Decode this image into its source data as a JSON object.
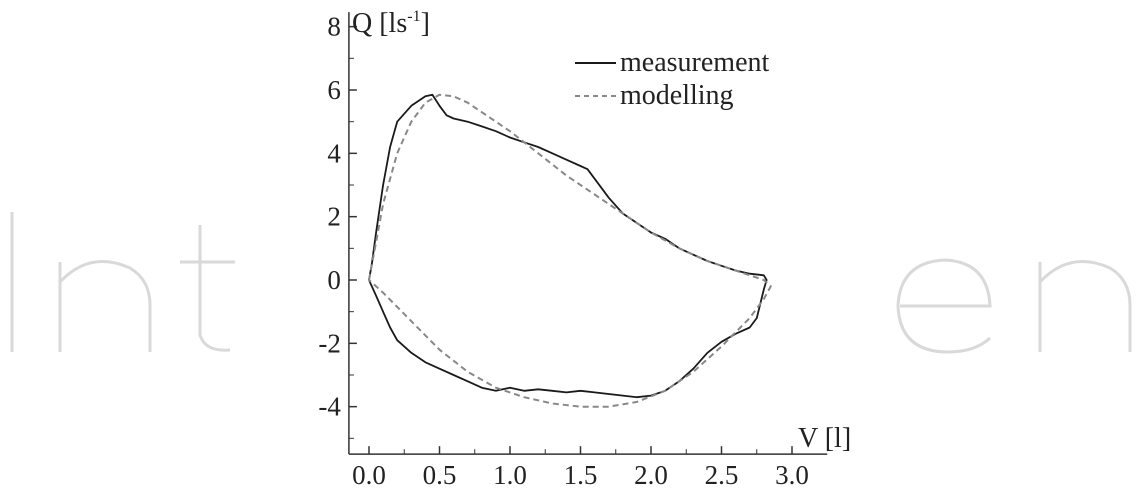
{
  "chart_data": {
    "type": "line",
    "title": "",
    "xlabel": "V [l]",
    "ylabel_main": "Q [ls",
    "ylabel_sup": "-1",
    "ylabel_close": "]",
    "xlim": [
      -0.1,
      3.25
    ],
    "ylim": [
      -5.5,
      8.3
    ],
    "x_ticks": [
      "0.0",
      "0.5",
      "1.0",
      "1.5",
      "2.0",
      "2.5",
      "3.0"
    ],
    "y_ticks": [
      "8",
      "6",
      "4",
      "2",
      "0",
      "-2",
      "-4"
    ],
    "legend_position": "top-right",
    "series": [
      {
        "name": "measurement",
        "style": "solid",
        "color": "#1a1a1a",
        "x": [
          0.0,
          0.02,
          0.05,
          0.1,
          0.15,
          0.2,
          0.3,
          0.4,
          0.45,
          0.5,
          0.55,
          0.6,
          0.7,
          0.8,
          0.9,
          1.0,
          1.1,
          1.2,
          1.3,
          1.4,
          1.5,
          1.55,
          1.6,
          1.7,
          1.8,
          1.9,
          2.0,
          2.1,
          2.2,
          2.3,
          2.4,
          2.5,
          2.6,
          2.7,
          2.8,
          2.82,
          2.8,
          2.75,
          2.7,
          2.6,
          2.5,
          2.4,
          2.3,
          2.2,
          2.1,
          2.0,
          1.9,
          1.8,
          1.7,
          1.6,
          1.5,
          1.4,
          1.3,
          1.2,
          1.1,
          1.0,
          0.9,
          0.8,
          0.7,
          0.6,
          0.5,
          0.4,
          0.3,
          0.2,
          0.15,
          0.1,
          0.05,
          0.02,
          0.0
        ],
        "y": [
          0.0,
          0.5,
          1.5,
          3.0,
          4.2,
          5.0,
          5.5,
          5.8,
          5.85,
          5.5,
          5.2,
          5.1,
          5.0,
          4.85,
          4.7,
          4.5,
          4.35,
          4.2,
          4.0,
          3.8,
          3.6,
          3.5,
          3.2,
          2.6,
          2.1,
          1.8,
          1.5,
          1.3,
          1.0,
          0.8,
          0.6,
          0.45,
          0.3,
          0.2,
          0.15,
          0.0,
          -0.3,
          -1.2,
          -1.5,
          -1.7,
          -1.95,
          -2.3,
          -2.8,
          -3.2,
          -3.5,
          -3.65,
          -3.7,
          -3.65,
          -3.6,
          -3.55,
          -3.5,
          -3.55,
          -3.5,
          -3.45,
          -3.5,
          -3.4,
          -3.5,
          -3.4,
          -3.2,
          -3.0,
          -2.8,
          -2.6,
          -2.3,
          -1.9,
          -1.5,
          -1.0,
          -0.5,
          -0.2,
          0.0
        ]
      },
      {
        "name": "modelling",
        "style": "dashed",
        "color": "#888888",
        "x": [
          0.0,
          0.05,
          0.1,
          0.2,
          0.3,
          0.4,
          0.5,
          0.6,
          0.7,
          0.8,
          1.0,
          1.2,
          1.4,
          1.6,
          1.8,
          2.0,
          2.2,
          2.4,
          2.6,
          2.7,
          2.8,
          2.85,
          2.8,
          2.7,
          2.5,
          2.3,
          2.1,
          1.9,
          1.7,
          1.5,
          1.3,
          1.1,
          0.9,
          0.7,
          0.5,
          0.3,
          0.1,
          0.0
        ],
        "y": [
          0.0,
          1.2,
          2.4,
          4.0,
          5.0,
          5.6,
          5.85,
          5.8,
          5.6,
          5.3,
          4.7,
          4.0,
          3.3,
          2.7,
          2.1,
          1.5,
          1.0,
          0.6,
          0.3,
          0.15,
          0.0,
          -0.2,
          -0.6,
          -1.2,
          -2.1,
          -2.9,
          -3.5,
          -3.85,
          -4.0,
          -4.0,
          -3.9,
          -3.7,
          -3.4,
          -2.9,
          -2.2,
          -1.3,
          -0.4,
          0.0
        ]
      }
    ]
  }
}
